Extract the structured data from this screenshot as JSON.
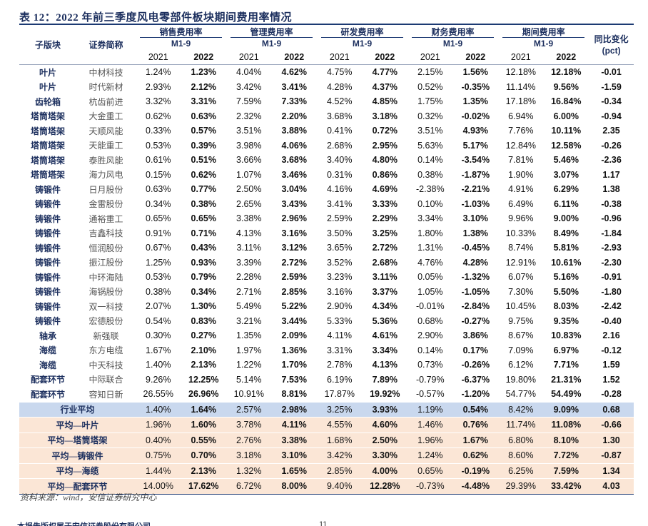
{
  "title": "表 12：2022 年前三季度风电零部件板块期间费用率情况",
  "table": {
    "header": {
      "segment": "子版块",
      "name": "证券简称",
      "groups": [
        {
          "name": "销售费用率",
          "period": "M1-9",
          "years": [
            "2021",
            "2022"
          ]
        },
        {
          "name": "管理费用率",
          "period": "M1-9",
          "years": [
            "2021",
            "2022"
          ]
        },
        {
          "name": "研发费用率",
          "period": "M1-9",
          "years": [
            "2021",
            "2022"
          ]
        },
        {
          "name": "财务费用率",
          "period": "M1-9",
          "years": [
            "2021",
            "2022"
          ]
        },
        {
          "name": "期间费用率",
          "period": "M1-9",
          "years": [
            "2021",
            "2022"
          ]
        }
      ],
      "change": {
        "name": "同比变化",
        "unit": "(pct)"
      }
    },
    "rows": [
      [
        "叶片",
        "中材科技",
        "1.24%",
        "1.23%",
        "4.04%",
        "4.62%",
        "4.75%",
        "4.77%",
        "2.15%",
        "1.56%",
        "12.18%",
        "12.18%",
        "-0.01"
      ],
      [
        "叶片",
        "时代新材",
        "2.93%",
        "2.12%",
        "3.42%",
        "3.41%",
        "4.28%",
        "4.37%",
        "0.52%",
        "-0.35%",
        "11.14%",
        "9.56%",
        "-1.59"
      ],
      [
        "齿轮箱",
        "杭齿前进",
        "3.32%",
        "3.31%",
        "7.59%",
        "7.33%",
        "4.52%",
        "4.85%",
        "1.75%",
        "1.35%",
        "17.18%",
        "16.84%",
        "-0.34"
      ],
      [
        "塔筒塔架",
        "大金重工",
        "0.62%",
        "0.63%",
        "2.32%",
        "2.20%",
        "3.68%",
        "3.18%",
        "0.32%",
        "-0.02%",
        "6.94%",
        "6.00%",
        "-0.94"
      ],
      [
        "塔筒塔架",
        "天顺风能",
        "0.33%",
        "0.57%",
        "3.51%",
        "3.88%",
        "0.41%",
        "0.72%",
        "3.51%",
        "4.93%",
        "7.76%",
        "10.11%",
        "2.35"
      ],
      [
        "塔筒塔架",
        "天能重工",
        "0.53%",
        "0.39%",
        "3.98%",
        "4.06%",
        "2.68%",
        "2.95%",
        "5.63%",
        "5.17%",
        "12.84%",
        "12.58%",
        "-0.26"
      ],
      [
        "塔筒塔架",
        "泰胜风能",
        "0.61%",
        "0.51%",
        "3.66%",
        "3.68%",
        "3.40%",
        "4.80%",
        "0.14%",
        "-3.54%",
        "7.81%",
        "5.46%",
        "-2.36"
      ],
      [
        "塔筒塔架",
        "海力风电",
        "0.15%",
        "0.62%",
        "1.07%",
        "3.46%",
        "0.31%",
        "0.86%",
        "0.38%",
        "-1.87%",
        "1.90%",
        "3.07%",
        "1.17"
      ],
      [
        "铸锻件",
        "日月股份",
        "0.63%",
        "0.77%",
        "2.50%",
        "3.04%",
        "4.16%",
        "4.69%",
        "-2.38%",
        "-2.21%",
        "4.91%",
        "6.29%",
        "1.38"
      ],
      [
        "铸锻件",
        "金雷股份",
        "0.34%",
        "0.38%",
        "2.65%",
        "3.43%",
        "3.41%",
        "3.33%",
        "0.10%",
        "-1.03%",
        "6.49%",
        "6.11%",
        "-0.38"
      ],
      [
        "铸锻件",
        "通裕重工",
        "0.65%",
        "0.65%",
        "3.38%",
        "2.96%",
        "2.59%",
        "2.29%",
        "3.34%",
        "3.10%",
        "9.96%",
        "9.00%",
        "-0.96"
      ],
      [
        "铸锻件",
        "吉鑫科技",
        "0.91%",
        "0.71%",
        "4.13%",
        "3.16%",
        "3.50%",
        "3.25%",
        "1.80%",
        "1.38%",
        "10.33%",
        "8.49%",
        "-1.84"
      ],
      [
        "铸锻件",
        "恒润股份",
        "0.67%",
        "0.43%",
        "3.11%",
        "3.12%",
        "3.65%",
        "2.72%",
        "1.31%",
        "-0.45%",
        "8.74%",
        "5.81%",
        "-2.93"
      ],
      [
        "铸锻件",
        "振江股份",
        "1.25%",
        "0.93%",
        "3.39%",
        "2.72%",
        "3.52%",
        "2.68%",
        "4.76%",
        "4.28%",
        "12.91%",
        "10.61%",
        "-2.30"
      ],
      [
        "铸锻件",
        "中环海陆",
        "0.53%",
        "0.79%",
        "2.28%",
        "2.59%",
        "3.23%",
        "3.11%",
        "0.05%",
        "-1.32%",
        "6.07%",
        "5.16%",
        "-0.91"
      ],
      [
        "铸锻件",
        "海锅股份",
        "0.38%",
        "0.34%",
        "2.71%",
        "2.85%",
        "3.16%",
        "3.37%",
        "1.05%",
        "-1.05%",
        "7.30%",
        "5.50%",
        "-1.80"
      ],
      [
        "铸锻件",
        "双一科技",
        "2.07%",
        "1.30%",
        "5.49%",
        "5.22%",
        "2.90%",
        "4.34%",
        "-0.01%",
        "-2.84%",
        "10.45%",
        "8.03%",
        "-2.42"
      ],
      [
        "铸锻件",
        "宏德股份",
        "0.54%",
        "0.83%",
        "3.21%",
        "3.44%",
        "5.33%",
        "5.36%",
        "0.68%",
        "-0.27%",
        "9.75%",
        "9.35%",
        "-0.40"
      ],
      [
        "轴承",
        "新强联",
        "0.30%",
        "0.27%",
        "1.35%",
        "2.09%",
        "4.11%",
        "4.61%",
        "2.90%",
        "3.86%",
        "8.67%",
        "10.83%",
        "2.16"
      ],
      [
        "海缆",
        "东方电缆",
        "1.67%",
        "2.10%",
        "1.97%",
        "1.36%",
        "3.31%",
        "3.34%",
        "0.14%",
        "0.17%",
        "7.09%",
        "6.97%",
        "-0.12"
      ],
      [
        "海缆",
        "中天科技",
        "1.40%",
        "2.13%",
        "1.22%",
        "1.70%",
        "2.78%",
        "4.13%",
        "0.73%",
        "-0.26%",
        "6.12%",
        "7.71%",
        "1.59"
      ],
      [
        "配套环节",
        "中际联合",
        "9.26%",
        "12.25%",
        "5.14%",
        "7.53%",
        "6.19%",
        "7.89%",
        "-0.79%",
        "-6.37%",
        "19.80%",
        "21.31%",
        "1.52"
      ],
      [
        "配套环节",
        "容知日新",
        "26.55%",
        "26.96%",
        "10.91%",
        "8.81%",
        "17.87%",
        "19.92%",
        "-0.57%",
        "-1.20%",
        "54.77%",
        "54.49%",
        "-0.28"
      ]
    ],
    "summary": [
      [
        "行业平均",
        "1.40%",
        "1.64%",
        "2.57%",
        "2.98%",
        "3.25%",
        "3.93%",
        "1.19%",
        "0.54%",
        "8.42%",
        "9.09%",
        "0.68"
      ],
      [
        "平均—叶片",
        "1.96%",
        "1.60%",
        "3.78%",
        "4.11%",
        "4.55%",
        "4.60%",
        "1.46%",
        "0.76%",
        "11.74%",
        "11.08%",
        "-0.66"
      ],
      [
        "平均—塔筒塔架",
        "0.40%",
        "0.55%",
        "2.76%",
        "3.38%",
        "1.68%",
        "2.50%",
        "1.96%",
        "1.67%",
        "6.80%",
        "8.10%",
        "1.30"
      ],
      [
        "平均—铸锻件",
        "0.75%",
        "0.70%",
        "3.18%",
        "3.10%",
        "3.42%",
        "3.30%",
        "1.24%",
        "0.62%",
        "8.60%",
        "7.72%",
        "-0.87"
      ],
      [
        "平均—海缆",
        "1.44%",
        "2.13%",
        "1.32%",
        "1.65%",
        "2.85%",
        "4.00%",
        "0.65%",
        "-0.19%",
        "6.25%",
        "7.59%",
        "1.34"
      ],
      [
        "平均—配套环节",
        "14.00%",
        "17.62%",
        "6.72%",
        "8.00%",
        "9.40%",
        "12.28%",
        "-0.73%",
        "-4.48%",
        "29.39%",
        "33.42%",
        "4.03"
      ]
    ]
  },
  "source": "资料来源：wind，安信证券研究中心",
  "footer": {
    "notice": "本报告版权属于安信证券股份有限公司。",
    "page": "11"
  }
}
